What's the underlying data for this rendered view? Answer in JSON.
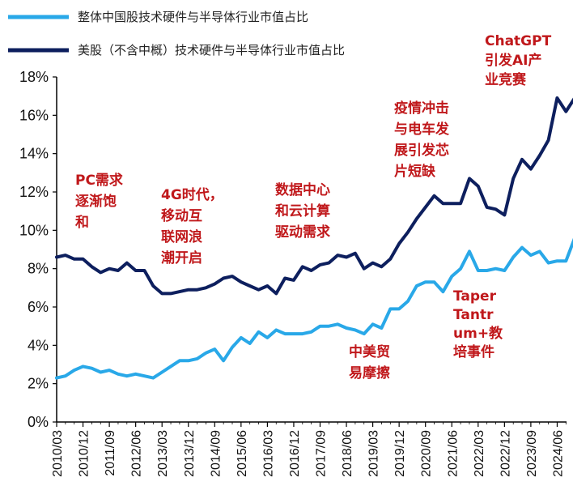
{
  "colors": {
    "series_a": "#29a8e8",
    "series_b": "#0d1f5e",
    "annotation": "#c0181b",
    "axis": "#000000"
  },
  "chart_data": {
    "type": "line",
    "title": "",
    "xlabel": "",
    "ylabel": "",
    "ylim": [
      0,
      18
    ],
    "y_ticks": [
      "0%",
      "2%",
      "4%",
      "6%",
      "8%",
      "10%",
      "12%",
      "14%",
      "16%",
      "18%"
    ],
    "x_ticks": [
      "2010/03",
      "2010/12",
      "2011/09",
      "2012/06",
      "2013/03",
      "2013/12",
      "2014/09",
      "2015/06",
      "2016/03",
      "2016/12",
      "2017/09",
      "2018/06",
      "2019/03",
      "2019/12",
      "2020/09",
      "2021/06",
      "2022/03",
      "2022/12",
      "2023/09",
      "2024/06"
    ],
    "legend": [
      {
        "key": "a",
        "label": "整体中国股技术硬件与半导体行业市值占比"
      },
      {
        "key": "b",
        "label": "美股（不含中概）技术硬件与半导体行业市值占比"
      }
    ],
    "series": [
      {
        "name": "整体中国股技术硬件与半导体行业市值占比",
        "values": [
          2.3,
          2.4,
          2.7,
          2.9,
          2.8,
          2.6,
          2.7,
          2.5,
          2.4,
          2.5,
          2.4,
          2.3,
          2.6,
          2.9,
          3.2,
          3.2,
          3.3,
          3.6,
          3.8,
          3.2,
          3.9,
          4.4,
          4.1,
          4.7,
          4.4,
          4.8,
          4.6,
          4.6,
          4.6,
          4.7,
          5.0,
          5.0,
          5.1,
          4.9,
          4.8,
          4.6,
          5.1,
          4.9,
          5.9,
          5.9,
          6.3,
          7.1,
          7.3,
          7.3,
          6.8,
          7.6,
          8.0,
          8.9,
          7.9,
          7.9,
          8.0,
          7.9,
          8.6,
          9.1,
          8.7,
          8.9,
          8.3,
          8.4,
          8.4,
          9.6
        ]
      },
      {
        "name": "美股（不含中概）技术硬件与半导体行业市值占比",
        "values": [
          8.6,
          8.7,
          8.5,
          8.5,
          8.1,
          7.8,
          8.0,
          7.9,
          8.3,
          7.9,
          7.9,
          7.1,
          6.7,
          6.7,
          6.8,
          6.9,
          6.9,
          7.0,
          7.2,
          7.5,
          7.6,
          7.3,
          7.1,
          6.9,
          7.1,
          6.7,
          7.5,
          7.4,
          8.1,
          7.9,
          8.2,
          8.3,
          8.7,
          8.6,
          8.8,
          8.0,
          8.3,
          8.1,
          8.5,
          9.3,
          9.9,
          10.6,
          11.2,
          11.8,
          11.4,
          11.4,
          11.4,
          12.7,
          12.3,
          11.2,
          11.1,
          10.8,
          12.7,
          13.7,
          13.2,
          13.9,
          14.7,
          16.9,
          16.2,
          16.9
        ]
      }
    ],
    "annotations": [
      {
        "lines": [
          "PC需求",
          "逐渐饱",
          "和"
        ]
      },
      {
        "lines": [
          "4G时代，",
          "移动互",
          "联网浪",
          "潮开启"
        ]
      },
      {
        "lines": [
          "数据中心",
          "和云计算",
          "驱动需求"
        ]
      },
      {
        "lines": [
          "疫情冲击",
          "与电车发",
          "展引发芯",
          "片短缺"
        ]
      },
      {
        "lines": [
          "ChatGPT",
          "引发AI产",
          "业竞赛"
        ]
      },
      {
        "lines": [
          "中美贸",
          "易摩擦"
        ]
      },
      {
        "lines": [
          "Taper",
          "Tantr",
          "um+教",
          "培事件"
        ]
      }
    ]
  }
}
